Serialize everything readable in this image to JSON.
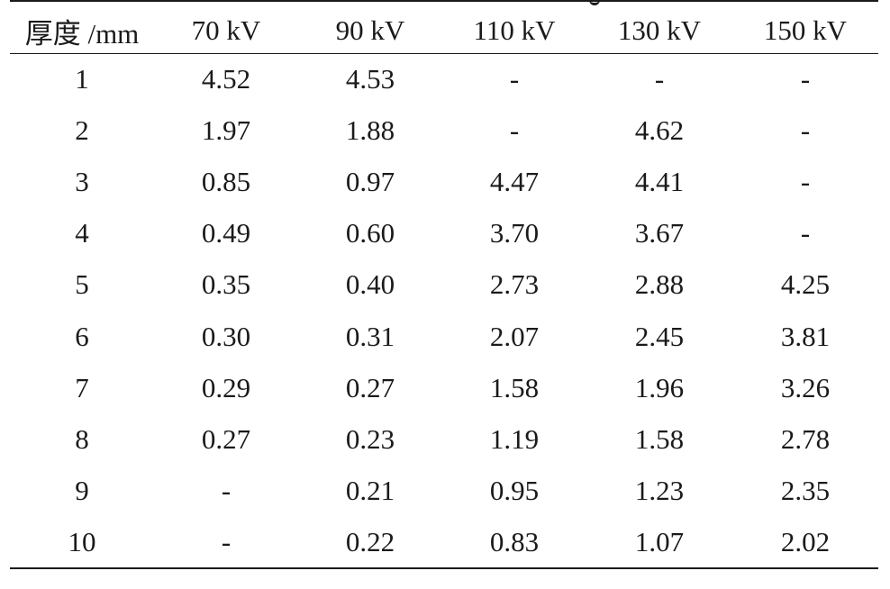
{
  "table": {
    "headers": [
      "厚度 /mm",
      "70 kV",
      "90 kV",
      "110 kV",
      "130 kV",
      "150 kV"
    ],
    "rows": [
      [
        "1",
        "4.52",
        "4.53",
        "-",
        "-",
        "-"
      ],
      [
        "2",
        "1.97",
        "1.88",
        "-",
        "4.62",
        "-"
      ],
      [
        "3",
        "0.85",
        "0.97",
        "4.47",
        "4.41",
        "-"
      ],
      [
        "4",
        "0.49",
        "0.60",
        "3.70",
        "3.67",
        "-"
      ],
      [
        "5",
        "0.35",
        "0.40",
        "2.73",
        "2.88",
        "4.25"
      ],
      [
        "6",
        "0.30",
        "0.31",
        "2.07",
        "2.45",
        "3.81"
      ],
      [
        "7",
        "0.29",
        "0.27",
        "1.58",
        "1.96",
        "3.26"
      ],
      [
        "8",
        "0.27",
        "0.23",
        "1.19",
        "1.58",
        "2.78"
      ],
      [
        "9",
        "-",
        "0.21",
        "0.95",
        "1.23",
        "2.35"
      ],
      [
        "10",
        "-",
        "0.22",
        "0.83",
        "1.07",
        "2.02"
      ]
    ]
  }
}
